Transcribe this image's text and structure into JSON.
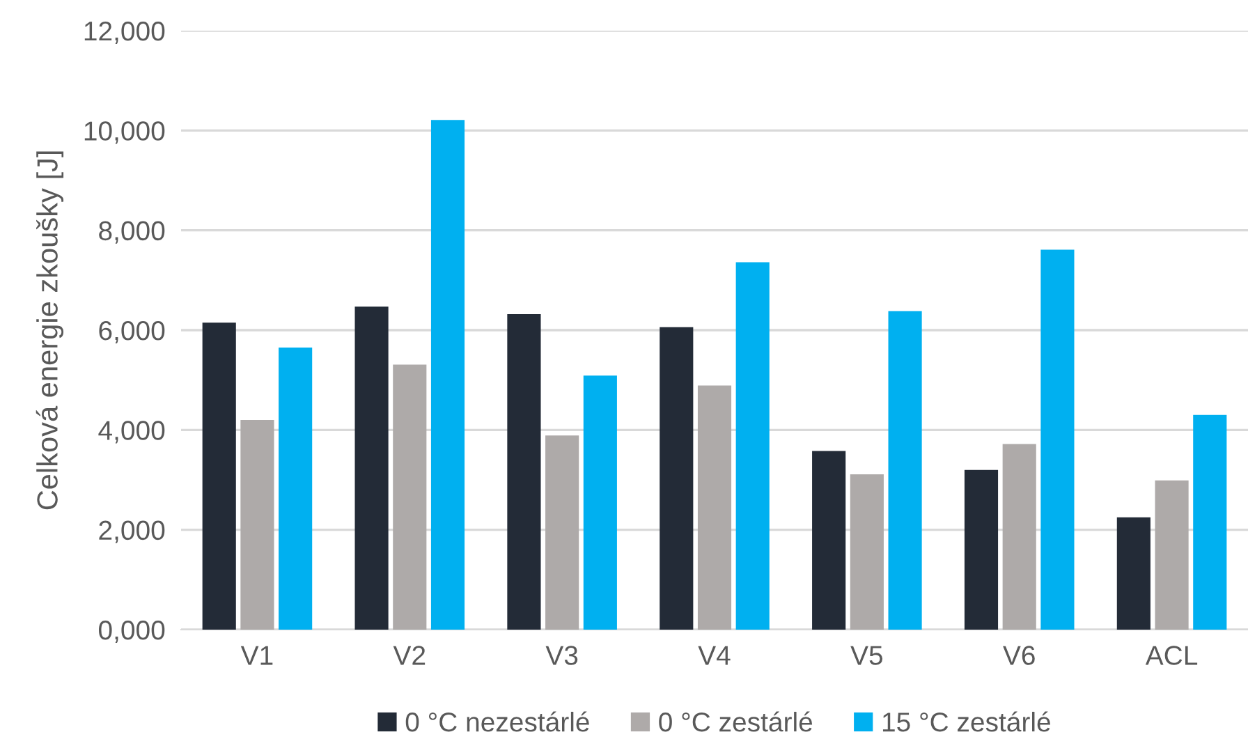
{
  "chart_data": {
    "type": "bar",
    "ylabel": "Celková energie zkoušky [J]",
    "categories": [
      "V1",
      "V2",
      "V3",
      "V4",
      "V5",
      "V6",
      "ACL"
    ],
    "series": [
      {
        "name": "0 °C nezestárlé",
        "color": "#232b37",
        "values": [
          6150,
          6470,
          6320,
          6060,
          3580,
          3200,
          2250
        ]
      },
      {
        "name": "0 °C zestárlé",
        "color": "#aeaaa9",
        "values": [
          4200,
          5310,
          3890,
          4890,
          3110,
          3720,
          2990
        ]
      },
      {
        "name": "15 °C zestárlé",
        "color": "#00b0f0",
        "values": [
          5650,
          10210,
          5090,
          7360,
          6380,
          7610,
          4300
        ]
      }
    ],
    "ylim": [
      0,
      12000
    ],
    "yticks": [
      {
        "value": 0,
        "label": "0,000"
      },
      {
        "value": 2000,
        "label": "2,000"
      },
      {
        "value": 4000,
        "label": "4,000"
      },
      {
        "value": 6000,
        "label": "6,000"
      },
      {
        "value": 8000,
        "label": "8,000"
      },
      {
        "value": 10000,
        "label": "10,000"
      },
      {
        "value": 12000,
        "label": "12,000"
      }
    ],
    "grid": "y",
    "legend": "bottom"
  }
}
